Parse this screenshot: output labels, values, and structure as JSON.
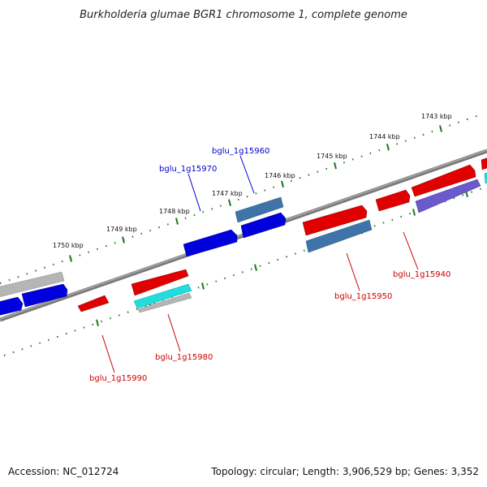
{
  "title": "Burkholderia glumae BGR1 chromosome 1, complete genome",
  "footer": {
    "accession": "Accession: NC_012724",
    "summary": "Topology: circular; Length: 3,906,529 bp; Genes: 3,352"
  },
  "ticks": [
    "1750 kbp",
    "1749 kbp",
    "1748 kbp",
    "1747 kbp",
    "1746 kbp",
    "1745 kbp",
    "1744 kbp",
    "1743 kbp"
  ],
  "gene_labels": [
    "bglu_1g15960",
    "bglu_1g15970",
    "bglu_1g15940",
    "bglu_1g15950",
    "bglu_1g15980",
    "bglu_1g15990"
  ],
  "colors": {
    "backbone": "#7a7a7a",
    "ruler": "#1a7a1a",
    "red": "#e00000",
    "blue": "#0000dd",
    "steel": "#3f74a8",
    "cyan": "#22dddd",
    "violet": "#6a5acd",
    "gray": "#b5b5b5",
    "label_blue": "#0000cc",
    "label_red": "#cc0000"
  }
}
